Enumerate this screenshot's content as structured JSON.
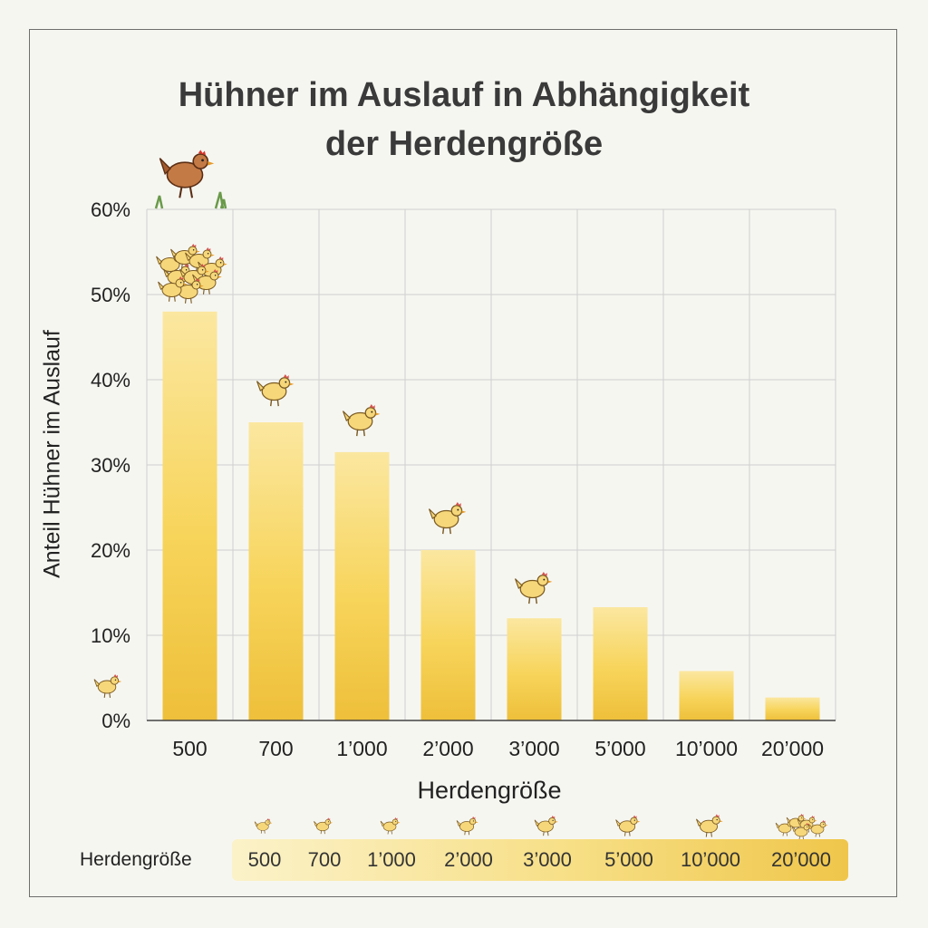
{
  "title_lines": [
    "Hühner im Auslauf in Abhängigkeit",
    "der Herdengröße"
  ],
  "legend_label": "Herdengröße",
  "colors": {
    "bar_light": "#fbe7a0",
    "bar_mid": "#f7d45a",
    "bar_dark": "#eebf3a",
    "grid": "#cfcfcf",
    "hen_yellow": "#f6d77a",
    "hen_brown": "#b8693a"
  },
  "chart_data": {
    "type": "bar",
    "title": "Hühner im Auslauf in Abhängigkeit der Herdengröße",
    "xlabel": "Herdengröße",
    "ylabel": "Anteil Hühner im Auslauf",
    "categories": [
      "500",
      "700",
      "1’000",
      "2’000",
      "3’000",
      "5’000",
      "10’000",
      "20’000"
    ],
    "values": [
      48,
      35,
      31.5,
      20,
      12,
      13.3,
      5.8,
      2.7
    ],
    "unit": "%",
    "ylim": [
      0,
      60
    ],
    "yticks": [
      "0%",
      "10%",
      "20%",
      "30%",
      "40%",
      "50%",
      "60%"
    ],
    "grid": true
  }
}
